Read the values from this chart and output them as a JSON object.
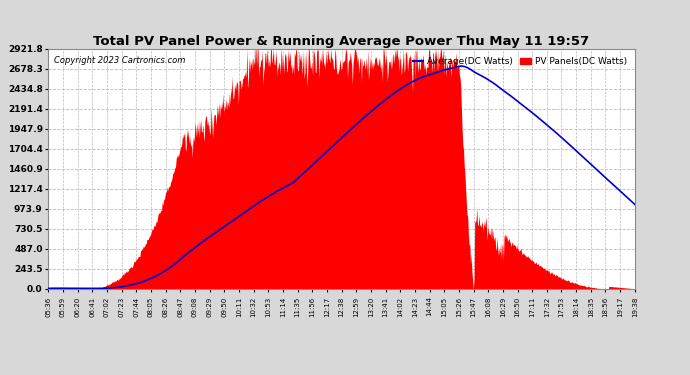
{
  "title": "Total PV Panel Power & Running Average Power Thu May 11 19:57",
  "copyright": "Copyright 2023 Cartronics.com",
  "legend_avg": "Average(DC Watts)",
  "legend_pv": "PV Panels(DC Watts)",
  "yticks": [
    0.0,
    243.5,
    487.0,
    730.5,
    973.9,
    1217.4,
    1460.9,
    1704.4,
    1947.9,
    2191.4,
    2434.8,
    2678.3,
    2921.8
  ],
  "ymax": 2921.8,
  "bg_color": "#d8d8d8",
  "plot_bg_color": "#ffffff",
  "pv_color": "#ff0000",
  "avg_color": "#0000cc",
  "grid_color": "#bbbbbb",
  "title_color": "#000000",
  "copyright_color": "#000000",
  "xtick_labels": [
    "05:36",
    "05:59",
    "06:20",
    "06:41",
    "07:02",
    "07:23",
    "07:44",
    "08:05",
    "08:26",
    "08:47",
    "09:08",
    "09:29",
    "09:50",
    "10:11",
    "10:32",
    "10:53",
    "11:14",
    "11:35",
    "11:56",
    "12:17",
    "12:38",
    "12:59",
    "13:20",
    "13:41",
    "14:02",
    "14:23",
    "14:44",
    "15:05",
    "15:26",
    "15:47",
    "16:08",
    "16:29",
    "16:50",
    "17:11",
    "17:32",
    "17:53",
    "18:14",
    "18:35",
    "18:56",
    "19:17",
    "19:38"
  ]
}
